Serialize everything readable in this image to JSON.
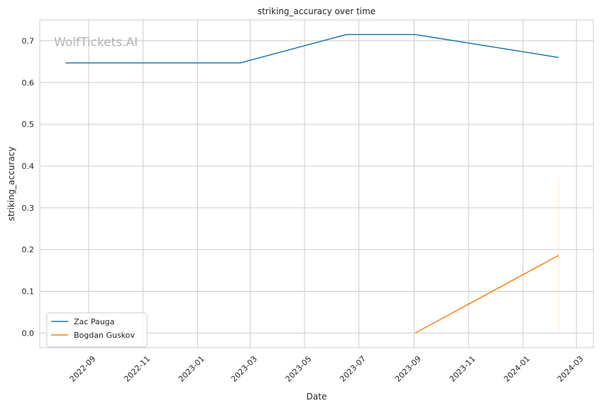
{
  "chart_data": {
    "type": "line",
    "title": "striking_accuracy over time",
    "xlabel": "Date",
    "ylabel": "striking_accuracy",
    "watermark": "WolfTickets.AI",
    "xlim": [
      "2022-07-08",
      "2024-03-20"
    ],
    "ylim": [
      -0.035,
      0.75
    ],
    "x_ticks": [
      "2022-09-01",
      "2022-11-01",
      "2023-01-01",
      "2023-03-01",
      "2023-05-01",
      "2023-07-01",
      "2023-09-01",
      "2023-11-01",
      "2024-01-01",
      "2024-03-01"
    ],
    "x_tick_labels": [
      "2022-09",
      "2022-11",
      "2023-01",
      "2023-03",
      "2023-05",
      "2023-07",
      "2023-09",
      "2023-11",
      "2024-01",
      "2024-03"
    ],
    "y_ticks": [
      0.0,
      0.1,
      0.2,
      0.3,
      0.4,
      0.5,
      0.6,
      0.7
    ],
    "y_tick_labels": [
      "0.0",
      "0.1",
      "0.2",
      "0.3",
      "0.4",
      "0.5",
      "0.6",
      "0.7"
    ],
    "grid": true,
    "legend_position": "lower-left",
    "series": [
      {
        "name": "Zac Pauga",
        "color": "#1f77b4",
        "x": [
          "2022-08-06",
          "2023-02-18",
          "2023-06-17",
          "2023-09-02",
          "2024-02-10"
        ],
        "y": [
          0.647,
          0.647,
          0.715,
          0.715,
          0.66
        ]
      },
      {
        "name": "Bogdan Guskov",
        "color": "#ff7f0e",
        "x": [
          "2023-09-02",
          "2024-02-10"
        ],
        "y": [
          0.0,
          0.186
        ],
        "band": {
          "x": "2024-02-10",
          "y_low": 0.0,
          "y_high": 0.372
        }
      }
    ]
  }
}
